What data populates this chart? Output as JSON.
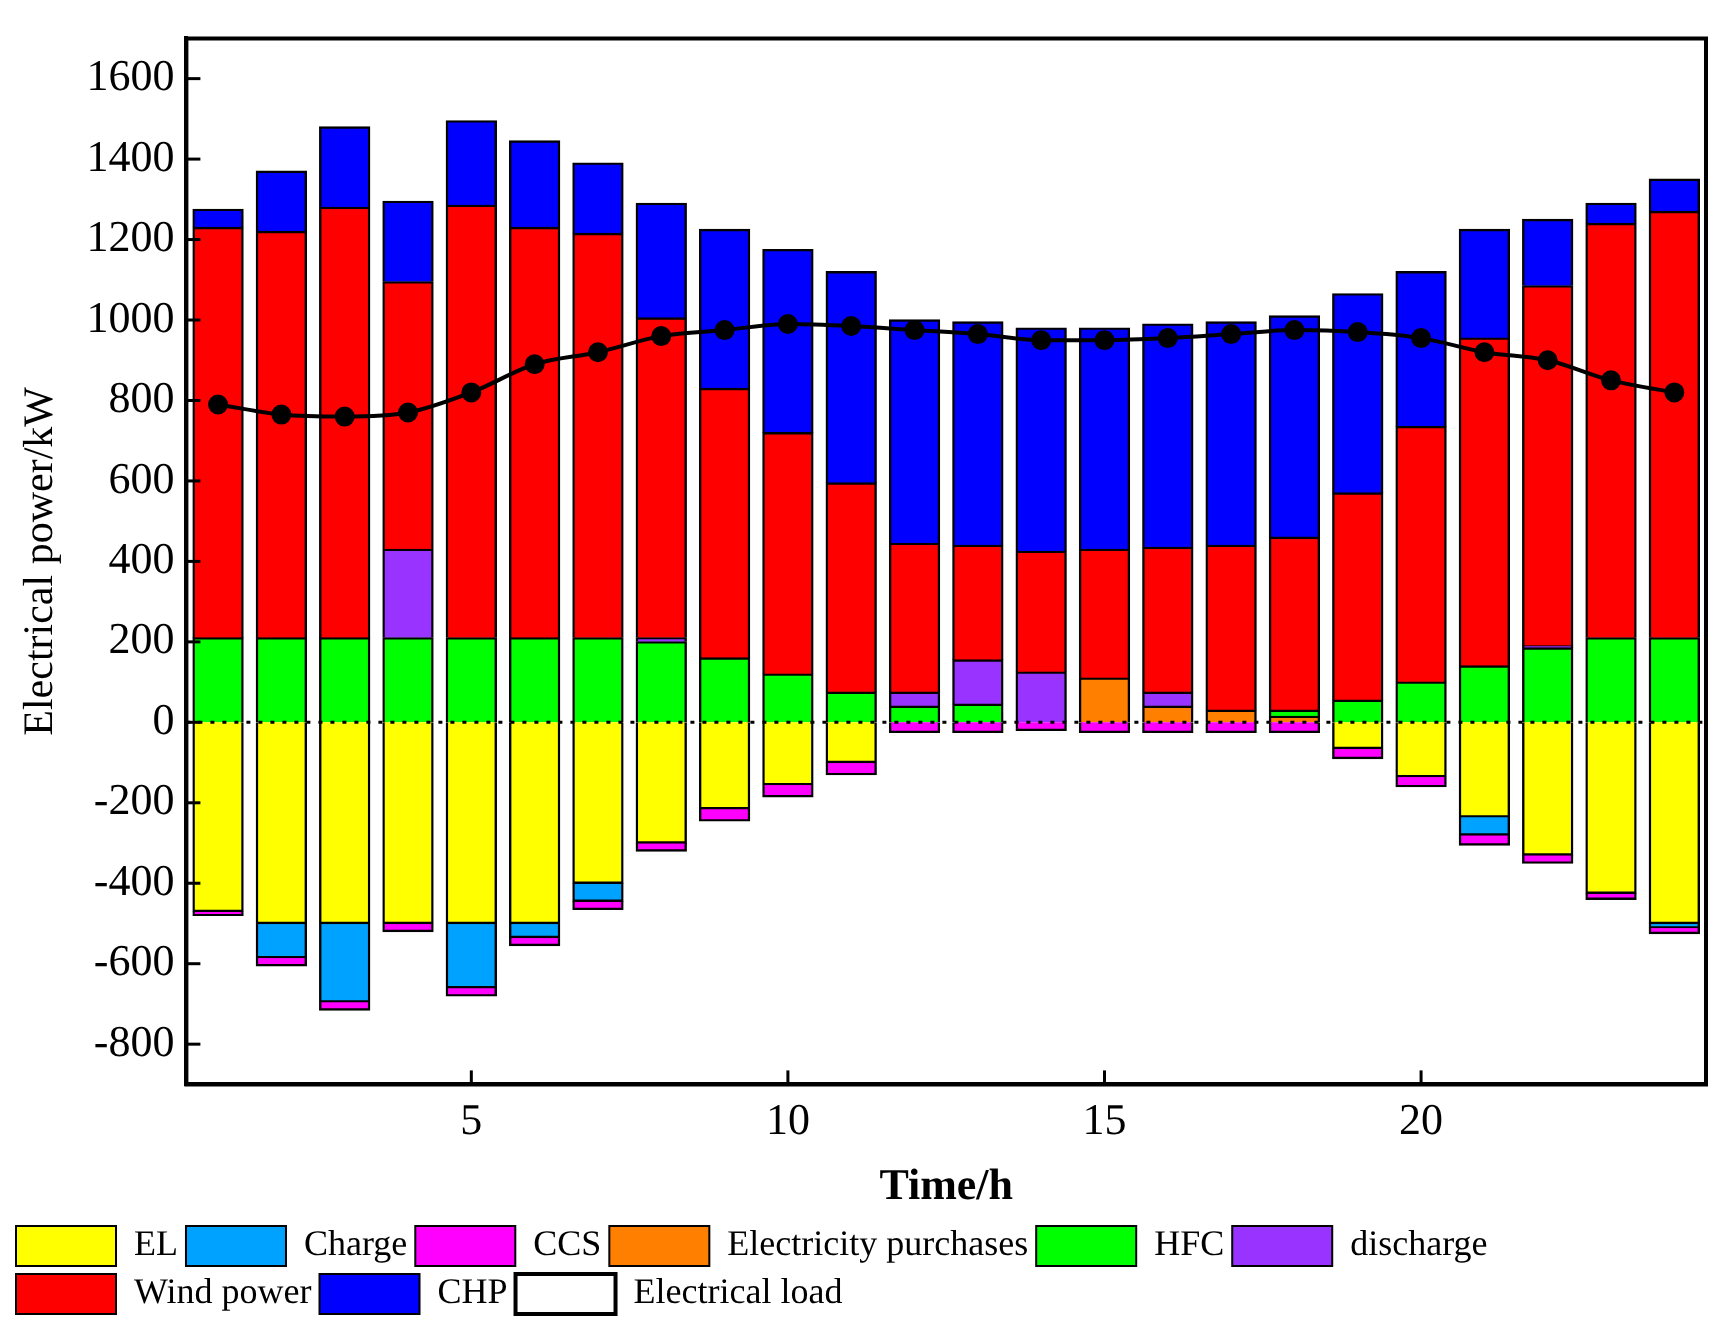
{
  "chart_data": {
    "type": "bar",
    "stacked": true,
    "xlabel": "Time/h",
    "ylabel": "Electrical power/kW",
    "x": [
      1,
      2,
      3,
      4,
      5,
      6,
      7,
      8,
      9,
      10,
      11,
      12,
      13,
      14,
      15,
      16,
      17,
      18,
      19,
      20,
      21,
      22,
      23,
      24
    ],
    "xlim": [
      0.5,
      24.5
    ],
    "xticks": [
      5,
      10,
      15,
      20
    ],
    "ylim": [
      -900,
      1700
    ],
    "yticks": [
      -800,
      -600,
      -400,
      -200,
      0,
      200,
      400,
      600,
      800,
      1000,
      1200,
      1400,
      1600
    ],
    "grid": false,
    "legend": "bottom",
    "ref_lines": [
      {
        "axis": "y",
        "value": 0,
        "line_style": "dotted",
        "color": "#000000"
      }
    ],
    "series": [
      {
        "name": "EL",
        "color": "#ffff00",
        "values": [
          -470,
          -500,
          -500,
          -500,
          -500,
          -500,
          -400,
          -300,
          -215,
          -155,
          -100,
          0,
          0,
          0,
          0,
          0,
          0,
          0,
          -65,
          -135,
          -235,
          -330,
          -425,
          -500
        ]
      },
      {
        "name": "Charge",
        "color": "#00a2ff",
        "values": [
          0,
          -85,
          -195,
          0,
          -160,
          -35,
          -45,
          0,
          0,
          0,
          0,
          0,
          0,
          0,
          0,
          0,
          0,
          0,
          0,
          0,
          -45,
          0,
          0,
          -10
        ]
      },
      {
        "name": "CCS",
        "color": "#ff00ff",
        "values": [
          -10,
          -20,
          -20,
          -20,
          -20,
          -20,
          -20,
          -20,
          -30,
          -30,
          -30,
          -25,
          -25,
          -20,
          -25,
          -25,
          -25,
          -25,
          -25,
          -25,
          -25,
          -20,
          -15,
          -15
        ]
      },
      {
        "name": "Electricity purchases",
        "color": "#ff8000",
        "values": [
          0,
          0,
          0,
          0,
          0,
          0,
          0,
          0,
          0,
          0,
          0,
          0,
          0,
          0,
          110,
          40,
          30,
          15,
          0,
          0,
          0,
          0,
          0,
          0
        ]
      },
      {
        "name": "HFC",
        "color": "#00ff00",
        "values": [
          210,
          210,
          210,
          210,
          210,
          210,
          210,
          200,
          160,
          120,
          75,
          40,
          45,
          0,
          0,
          0,
          0,
          15,
          55,
          100,
          140,
          185,
          210,
          210
        ]
      },
      {
        "name": "discharge",
        "color": "#9933ff",
        "values": [
          0,
          0,
          0,
          220,
          0,
          0,
          0,
          10,
          0,
          0,
          0,
          35,
          110,
          125,
          0,
          35,
          0,
          0,
          0,
          0,
          0,
          5,
          0,
          0
        ]
      },
      {
        "name": "Wind power",
        "color": "#ff0000",
        "values": [
          1020,
          1010,
          1070,
          665,
          1075,
          1020,
          1005,
          795,
          670,
          600,
          520,
          370,
          285,
          300,
          320,
          360,
          410,
          430,
          515,
          635,
          815,
          895,
          1030,
          1060
        ]
      },
      {
        "name": "CHP",
        "color": "#0000ff",
        "values": [
          45,
          150,
          200,
          200,
          210,
          215,
          175,
          285,
          395,
          455,
          525,
          555,
          555,
          555,
          550,
          555,
          555,
          550,
          495,
          385,
          270,
          165,
          50,
          80
        ]
      },
      {
        "name": "Electrical load",
        "type": "line",
        "color": "#000000",
        "marker": "circle",
        "line_style": "solid",
        "values": [
          790,
          765,
          760,
          770,
          820,
          890,
          920,
          960,
          975,
          990,
          985,
          975,
          965,
          950,
          950,
          955,
          965,
          975,
          970,
          955,
          920,
          900,
          850,
          820
        ]
      }
    ]
  }
}
